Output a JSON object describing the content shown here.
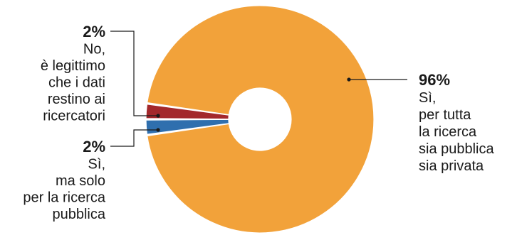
{
  "chart_data": {
    "type": "pie",
    "donut": true,
    "slices": [
      {
        "value": 96,
        "percent_label": "96%",
        "label_lines": [
          "Sì,",
          "per tutta",
          "la ricerca",
          "sia pubblica",
          "sia privata"
        ],
        "color": "#f2a23a"
      },
      {
        "value": 2,
        "percent_label": "2%",
        "label_lines": [
          "No,",
          "è legittimo",
          "che i dati",
          "restino ai",
          "ricercatori"
        ],
        "color": "#2f6fae"
      },
      {
        "value": 2,
        "percent_label": "2%",
        "label_lines": [
          "Sì,",
          "ma solo",
          "per la ricerca",
          "pubblica"
        ],
        "color": "#a3282b"
      }
    ]
  }
}
